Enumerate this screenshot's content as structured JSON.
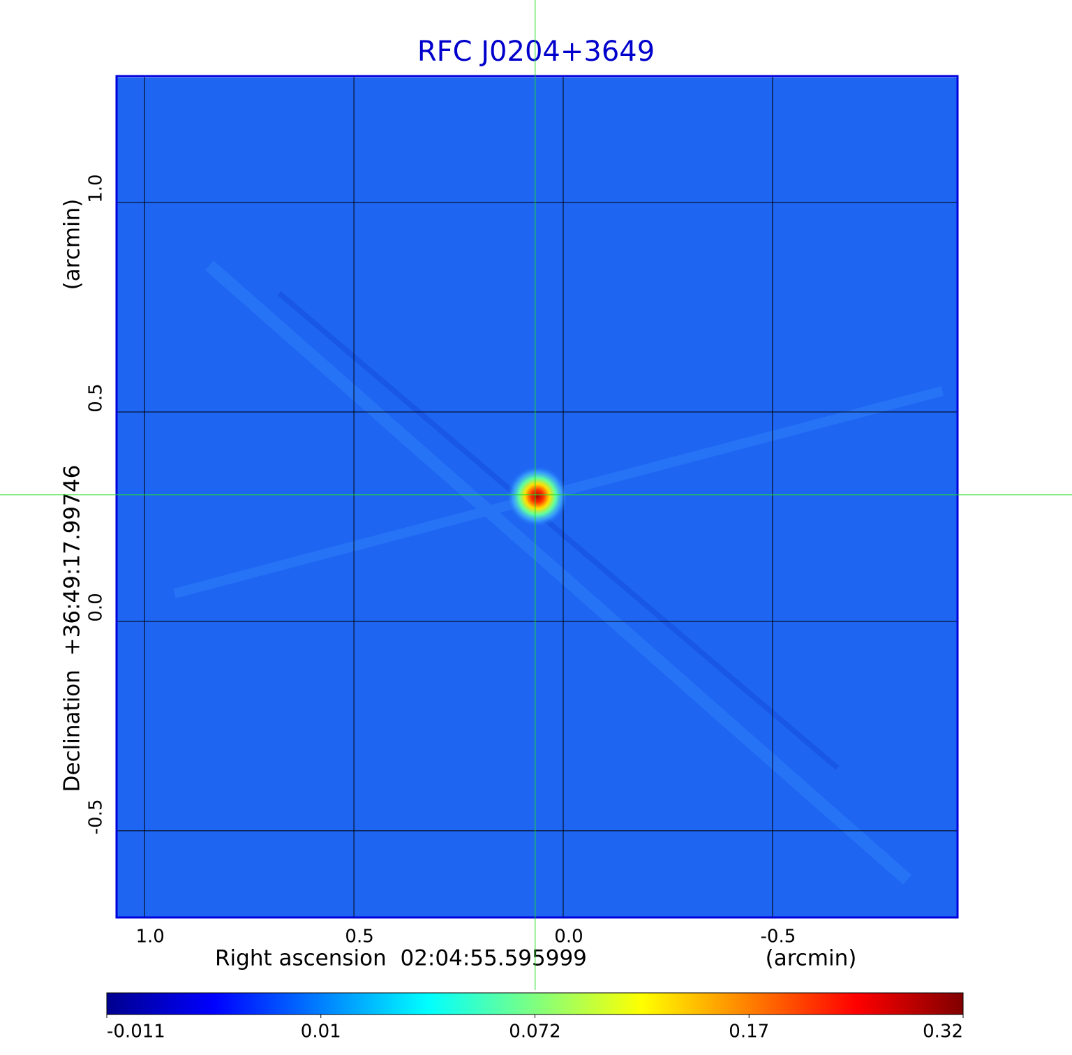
{
  "chart_data": {
    "type": "image",
    "title": "RFC J0204+3649",
    "xlabel": "Right ascension  02:04:55.595999",
    "xunit": "(arcmin)",
    "ylabel": "Declination  +36:49:17.99746",
    "yunit": "(arcmin)",
    "xlim": [
      1.067,
      -0.942
    ],
    "ylim": [
      -0.707,
      1.302
    ],
    "xticks": [
      {
        "value": 1,
        "label": "1.0"
      },
      {
        "value": 0.5,
        "label": "0.5"
      },
      {
        "value": 0,
        "label": "0.0"
      },
      {
        "value": -0.5,
        "label": "-0.5"
      }
    ],
    "yticks": [
      {
        "value": 1,
        "label": "1.0"
      },
      {
        "value": 0.5,
        "label": "0.5"
      },
      {
        "value": 0,
        "label": "0.0"
      },
      {
        "value": -0.5,
        "label": "-0.5"
      }
    ],
    "grid": true,
    "source": {
      "x": 0.067,
      "y": 0.302,
      "peak": 0.32
    },
    "colorbar": {
      "colormap": "jet",
      "ticks": [
        -0.011,
        0.01,
        0.072,
        0.17,
        0.32
      ]
    }
  }
}
